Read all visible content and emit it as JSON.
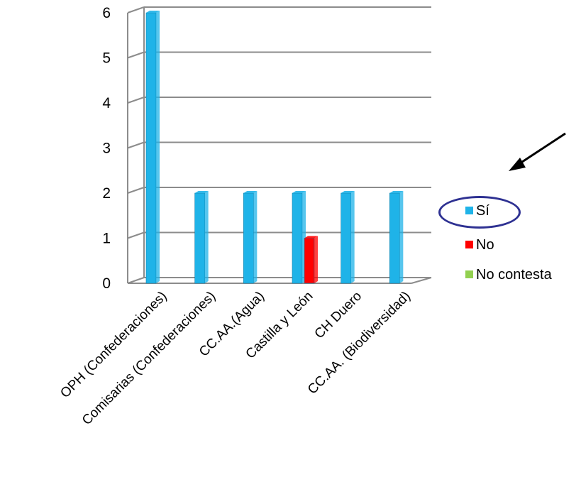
{
  "chart_data": {
    "type": "bar",
    "categories": [
      "OPH (Confederaciones)",
      "Comisarias (Confederaciones)",
      "CC.AA.(Agua)",
      "Castilla y León",
      "CH Duero",
      "CC.AA. (Biodiversidad)"
    ],
    "series": [
      {
        "name": "Sí",
        "values": [
          6,
          2,
          2,
          2,
          2,
          2
        ],
        "color": "#1FB3E8"
      },
      {
        "name": "No",
        "values": [
          0,
          0,
          0,
          1,
          0,
          0
        ],
        "color": "#FF0000"
      },
      {
        "name": "No contesta",
        "values": [
          0,
          0,
          0,
          0,
          0,
          0
        ],
        "color": "#92D050"
      }
    ],
    "yticks": [
      "0",
      "1",
      "2",
      "3",
      "4",
      "5",
      "6"
    ],
    "ylim": [
      0,
      6
    ],
    "grid": true,
    "legend_position": "right",
    "title": "",
    "xlabel": "",
    "ylabel": ""
  },
  "annotations": {
    "highlighted_legend_item": "Sí",
    "arrow_icon": "arrow-pointing-down-left-icon",
    "ring_color": "#2E3192"
  }
}
